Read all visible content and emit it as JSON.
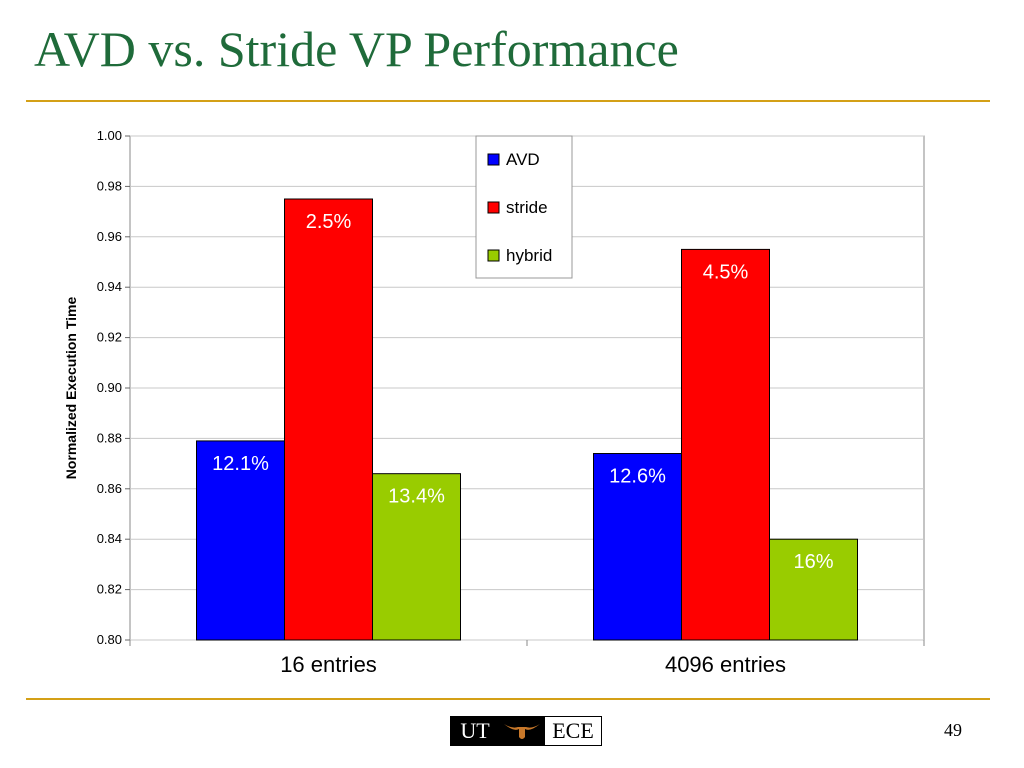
{
  "slide": {
    "title": "AVD vs. Stride VP Performance",
    "page_number": "49"
  },
  "footer": {
    "logo_left_text": "UT",
    "logo_right_text": "ECE"
  },
  "chart_data": {
    "type": "bar",
    "ylabel": "Normalized Execution Time",
    "xlabel": "",
    "ylim": [
      0.8,
      1.0
    ],
    "y_ticks": [
      "0.80",
      "0.82",
      "0.84",
      "0.86",
      "0.88",
      "0.90",
      "0.92",
      "0.94",
      "0.96",
      "0.98",
      "1.00"
    ],
    "categories": [
      "16 entries",
      "4096 entries"
    ],
    "grid": true,
    "legend_position": "top-center",
    "series": [
      {
        "name": "AVD",
        "color": "#0000ff",
        "values": [
          0.879,
          0.874
        ],
        "labels": [
          "12.1%",
          "12.6%"
        ]
      },
      {
        "name": "stride",
        "color": "#ff0000",
        "values": [
          0.975,
          0.955
        ],
        "labels": [
          "2.5%",
          "4.5%"
        ]
      },
      {
        "name": "hybrid",
        "color": "#99cc00",
        "values": [
          0.866,
          0.84
        ],
        "labels": [
          "13.4%",
          "16%"
        ]
      }
    ]
  }
}
